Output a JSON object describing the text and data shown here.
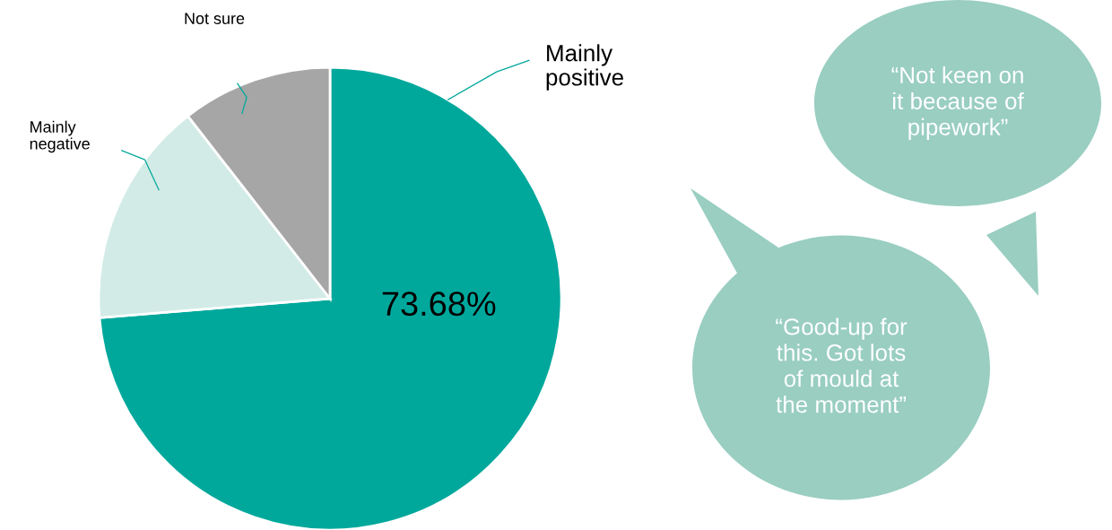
{
  "chart_data": {
    "type": "pie",
    "categories": [
      "Mainly positive",
      "Mainly negative",
      "Not sure"
    ],
    "values": [
      73.68,
      15.79,
      10.53
    ],
    "colors": [
      "#00a89c",
      "#d3ebe6",
      "#a6a6a6"
    ],
    "value_labels": [
      "73.68%",
      null,
      null
    ],
    "annotations": [
      "“Not keen on\nit because of\npipework”",
      "“Good-up for\nthis. Got lots\nof mould at\nthe moment”"
    ]
  }
}
